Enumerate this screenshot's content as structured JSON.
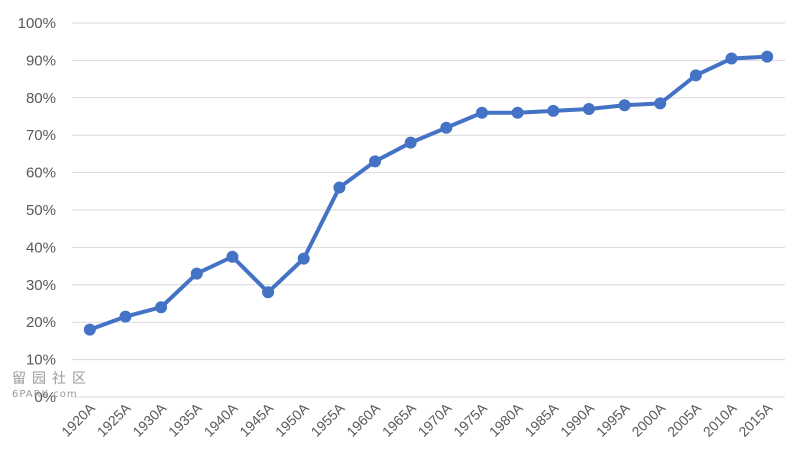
{
  "chart_data": {
    "type": "line",
    "categories": [
      "1920A",
      "1925A",
      "1930A",
      "1935A",
      "1940A",
      "1945A",
      "1950A",
      "1955A",
      "1960A",
      "1965A",
      "1970A",
      "1975A",
      "1980A",
      "1985A",
      "1990A",
      "1995A",
      "2000A",
      "2005A",
      "2010A",
      "2015A"
    ],
    "series": [
      {
        "values": [
          18,
          21.5,
          24,
          33,
          37.5,
          28,
          37,
          56,
          63,
          68,
          72,
          76,
          76,
          76.5,
          77,
          78,
          78.5,
          86,
          90.5,
          91
        ]
      }
    ],
    "ylim": [
      0,
      100
    ],
    "ytick_values": [
      0,
      10,
      20,
      30,
      40,
      50,
      60,
      70,
      80,
      90,
      100
    ],
    "ytick_labels": [
      "0%",
      "10%",
      "20%",
      "30%",
      "40%",
      "50%",
      "60%",
      "70%",
      "80%",
      "90%",
      "100%"
    ],
    "grid": true,
    "line_color": "#4472c4"
  },
  "watermark": {
    "logo_text": "留园社区",
    "site_text": "6PARK.com"
  }
}
